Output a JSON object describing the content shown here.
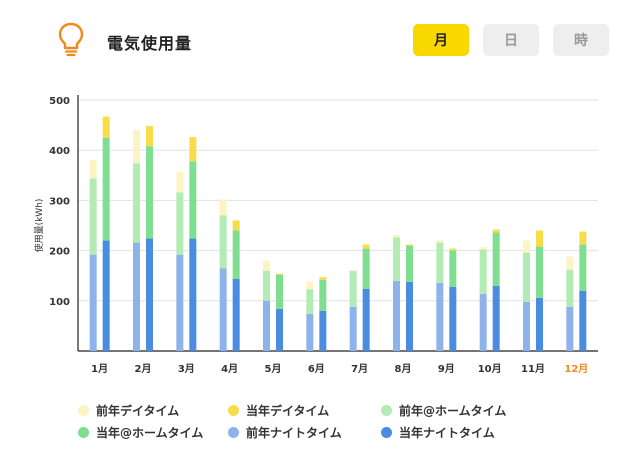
{
  "header": {
    "title": "電気使用量",
    "icon": "lightbulb-icon",
    "accent_color": "#f08a1c",
    "tabs": [
      {
        "label": "月",
        "active": true
      },
      {
        "label": "日",
        "active": false
      },
      {
        "label": "時",
        "active": false
      }
    ]
  },
  "chart_data": {
    "type": "bar",
    "ylabel": "使用量(kWh)",
    "ylim": [
      0,
      500
    ],
    "yticks": [
      100,
      200,
      300,
      400,
      500
    ],
    "grid": true,
    "highlight_category": "12月",
    "highlight_color": "#f08a1c",
    "categories": [
      "1月",
      "2月",
      "3月",
      "4月",
      "5月",
      "6月",
      "7月",
      "8月",
      "9月",
      "10月",
      "11月",
      "12月"
    ],
    "groups": [
      {
        "name": "前年",
        "series": [
          {
            "name": "前年ナイトタイム",
            "color": "#8db3ea",
            "values": [
              192,
              216,
              192,
              165,
              100,
              74,
              88,
              140,
              136,
              114,
              98,
              88
            ]
          },
          {
            "name": "前年@ホームタイム",
            "color": "#b2ecb4",
            "values": [
              152,
              158,
              124,
              105,
              60,
              49,
              72,
              86,
              80,
              88,
              98,
              74
            ]
          },
          {
            "name": "前年デイタイム",
            "color": "#fcf4c2",
            "values": [
              36,
              66,
              40,
              32,
              20,
              15,
              0,
              5,
              5,
              5,
              24,
              26
            ]
          }
        ]
      },
      {
        "name": "当年",
        "series": [
          {
            "name": "当年ナイトタイム",
            "color": "#4a8ce0",
            "values": [
              220,
              224,
              224,
              144,
              84,
              80,
              124,
              138,
              128,
              130,
              106,
              120
            ]
          },
          {
            "name": "当年@ホームタイム",
            "color": "#7fdf90",
            "values": [
              205,
              184,
              154,
              96,
              68,
              62,
              80,
              72,
              72,
              106,
              102,
              92
            ]
          },
          {
            "name": "当年デイタイム",
            "color": "#f9dc4a",
            "values": [
              42,
              40,
              48,
              20,
              2,
              5,
              8,
              2,
              4,
              6,
              32,
              26
            ]
          }
        ]
      }
    ]
  },
  "legend": [
    {
      "label": "前年デイタイム",
      "color": "#fcf4c2"
    },
    {
      "label": "当年デイタイム",
      "color": "#f9dc4a"
    },
    {
      "label": "前年@ホームタイム",
      "color": "#b2ecb4"
    },
    {
      "label": "当年@ホームタイム",
      "color": "#7fdf90"
    },
    {
      "label": "前年ナイトタイム",
      "color": "#8db3ea"
    },
    {
      "label": "当年ナイトタイム",
      "color": "#4a8ce0"
    }
  ]
}
